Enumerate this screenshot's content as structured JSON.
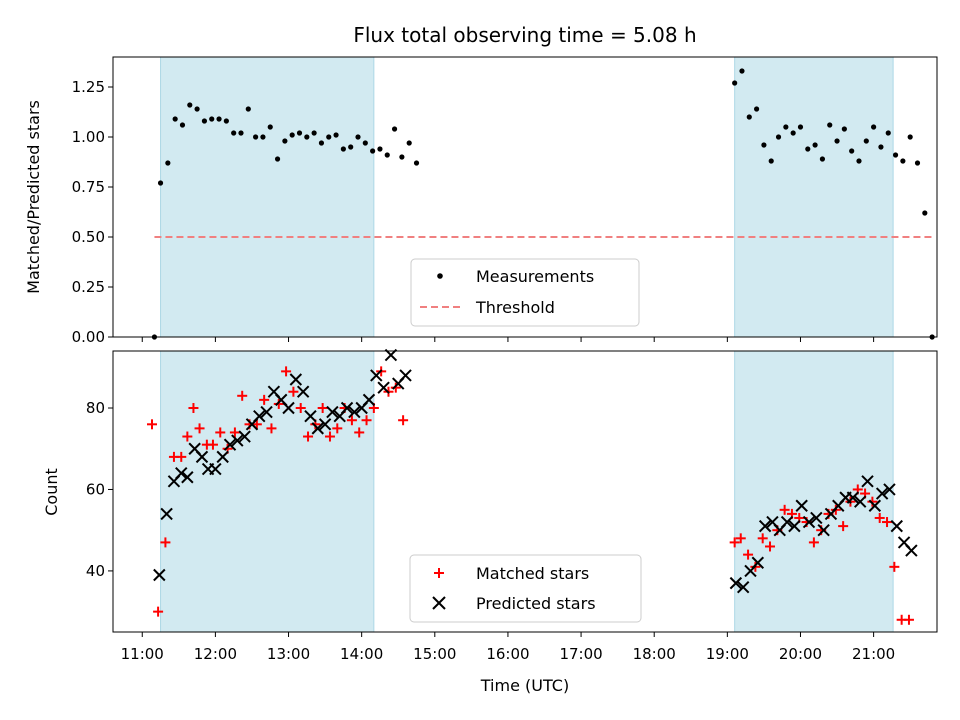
{
  "chart_data": {
    "title": "Flux total observing time = 5.08 h",
    "xlabel": "Time (UTC)",
    "x_ticks": [
      "11:00",
      "12:00",
      "13:00",
      "14:00",
      "15:00",
      "16:00",
      "17:00",
      "18:00",
      "19:00",
      "20:00",
      "21:00"
    ],
    "xlim": [
      "10:36",
      "21:52"
    ],
    "shaded_intervals": [
      {
        "start": "11:15",
        "end": "14:10"
      },
      {
        "start": "19:06",
        "end": "21:16"
      }
    ],
    "shade_color": "#add8e6",
    "panels": [
      {
        "type": "scatter",
        "ylabel": "Matched/Predicted stars",
        "ylim": [
          0,
          1.4
        ],
        "yticks": [
          "0.00",
          "0.25",
          "0.50",
          "0.75",
          "1.00",
          "1.25"
        ],
        "yticks_values": [
          0,
          0.25,
          0.5,
          0.75,
          1.0,
          1.25
        ],
        "legend_position": "lower-center",
        "series": [
          {
            "name": "Measurements",
            "marker": "dot",
            "color": "#000000",
            "points": [
              [
                "11:10",
                0.0
              ],
              [
                "11:15",
                0.77
              ],
              [
                "11:21",
                0.87
              ],
              [
                "11:27",
                1.09
              ],
              [
                "11:33",
                1.06
              ],
              [
                "11:39",
                1.16
              ],
              [
                "11:45",
                1.14
              ],
              [
                "11:51",
                1.08
              ],
              [
                "11:57",
                1.09
              ],
              [
                "12:03",
                1.09
              ],
              [
                "12:09",
                1.08
              ],
              [
                "12:15",
                1.02
              ],
              [
                "12:21",
                1.02
              ],
              [
                "12:27",
                1.14
              ],
              [
                "12:33",
                1.0
              ],
              [
                "12:39",
                1.0
              ],
              [
                "12:45",
                1.05
              ],
              [
                "12:51",
                0.89
              ],
              [
                "12:57",
                0.98
              ],
              [
                "13:03",
                1.01
              ],
              [
                "13:09",
                1.02
              ],
              [
                "13:15",
                1.0
              ],
              [
                "13:21",
                1.02
              ],
              [
                "13:27",
                0.97
              ],
              [
                "13:33",
                1.0
              ],
              [
                "13:39",
                1.01
              ],
              [
                "13:45",
                0.94
              ],
              [
                "13:51",
                0.95
              ],
              [
                "13:57",
                1.0
              ],
              [
                "14:03",
                0.97
              ],
              [
                "14:09",
                0.93
              ],
              [
                "14:15",
                0.94
              ],
              [
                "14:21",
                0.91
              ],
              [
                "14:27",
                1.04
              ],
              [
                "14:33",
                0.9
              ],
              [
                "14:39",
                0.97
              ],
              [
                "14:45",
                0.87
              ],
              [
                "19:06",
                1.27
              ],
              [
                "19:12",
                1.33
              ],
              [
                "19:18",
                1.1
              ],
              [
                "19:24",
                1.14
              ],
              [
                "19:30",
                0.96
              ],
              [
                "19:36",
                0.88
              ],
              [
                "19:42",
                1.0
              ],
              [
                "19:48",
                1.05
              ],
              [
                "19:54",
                1.02
              ],
              [
                "20:00",
                1.05
              ],
              [
                "20:06",
                0.94
              ],
              [
                "20:12",
                0.96
              ],
              [
                "20:18",
                0.89
              ],
              [
                "20:24",
                1.06
              ],
              [
                "20:30",
                0.98
              ],
              [
                "20:36",
                1.04
              ],
              [
                "20:42",
                0.93
              ],
              [
                "20:48",
                0.88
              ],
              [
                "20:54",
                0.98
              ],
              [
                "21:00",
                1.05
              ],
              [
                "21:06",
                0.95
              ],
              [
                "21:12",
                1.02
              ],
              [
                "21:18",
                0.91
              ],
              [
                "21:24",
                0.88
              ],
              [
                "21:30",
                1.0
              ],
              [
                "21:36",
                0.87
              ],
              [
                "21:42",
                0.62
              ],
              [
                "21:48",
                0.0
              ]
            ]
          },
          {
            "name": "Threshold",
            "marker": "dashed-line",
            "color": "#f08080",
            "x": [
              "11:10",
              "21:48"
            ],
            "y": [
              0.5,
              0.5
            ]
          }
        ]
      },
      {
        "type": "scatter",
        "ylabel": "Count",
        "ylim": [
          25,
          94
        ],
        "yticks": [
          "40",
          "60",
          "80"
        ],
        "yticks_values": [
          40,
          60,
          80
        ],
        "legend_position": "lower-center",
        "series": [
          {
            "name": "Matched stars",
            "marker": "plus",
            "color": "#ff0000",
            "points": [
              [
                "11:08",
                76
              ],
              [
                "11:13",
                30
              ],
              [
                "11:19",
                47
              ],
              [
                "11:26",
                68
              ],
              [
                "11:32",
                68
              ],
              [
                "11:37",
                73
              ],
              [
                "11:42",
                80
              ],
              [
                "11:47",
                75
              ],
              [
                "11:53",
                71
              ],
              [
                "11:58",
                71
              ],
              [
                "12:04",
                74
              ],
              [
                "12:10",
                70
              ],
              [
                "12:16",
                74
              ],
              [
                "12:22",
                83
              ],
              [
                "12:28",
                76
              ],
              [
                "12:34",
                76
              ],
              [
                "12:40",
                82
              ],
              [
                "12:46",
                75
              ],
              [
                "12:52",
                81
              ],
              [
                "12:58",
                89
              ],
              [
                "13:04",
                84
              ],
              [
                "13:10",
                80
              ],
              [
                "13:16",
                73
              ],
              [
                "13:22",
                76
              ],
              [
                "13:28",
                80
              ],
              [
                "13:34",
                73
              ],
              [
                "13:40",
                75
              ],
              [
                "13:46",
                80
              ],
              [
                "13:52",
                77
              ],
              [
                "13:58",
                74
              ],
              [
                "14:04",
                77
              ],
              [
                "14:10",
                80
              ],
              [
                "14:16",
                89
              ],
              [
                "14:22",
                84
              ],
              [
                "14:28",
                85
              ],
              [
                "14:34",
                77
              ],
              [
                "19:06",
                47
              ],
              [
                "19:11",
                48
              ],
              [
                "19:17",
                44
              ],
              [
                "19:23",
                41
              ],
              [
                "19:29",
                48
              ],
              [
                "19:35",
                46
              ],
              [
                "19:41",
                50
              ],
              [
                "19:47",
                55
              ],
              [
                "19:53",
                54
              ],
              [
                "19:59",
                53
              ],
              [
                "20:05",
                52
              ],
              [
                "20:11",
                47
              ],
              [
                "20:17",
                50
              ],
              [
                "20:23",
                54
              ],
              [
                "20:29",
                55
              ],
              [
                "20:35",
                51
              ],
              [
                "20:41",
                57
              ],
              [
                "20:47",
                60
              ],
              [
                "20:53",
                59
              ],
              [
                "20:59",
                57
              ],
              [
                "21:05",
                53
              ],
              [
                "21:11",
                52
              ],
              [
                "21:17",
                41
              ],
              [
                "21:23",
                28
              ],
              [
                "21:29",
                28
              ]
            ]
          },
          {
            "name": "Predicted stars",
            "marker": "x",
            "color": "#000000",
            "points": [
              [
                "11:14",
                39
              ],
              [
                "11:20",
                54
              ],
              [
                "11:26",
                62
              ],
              [
                "11:32",
                64
              ],
              [
                "11:37",
                63
              ],
              [
                "11:43",
                70
              ],
              [
                "11:49",
                68
              ],
              [
                "11:54",
                65
              ],
              [
                "12:00",
                65
              ],
              [
                "12:06",
                68
              ],
              [
                "12:12",
                71
              ],
              [
                "12:18",
                72
              ],
              [
                "12:24",
                73
              ],
              [
                "12:30",
                76
              ],
              [
                "12:36",
                78
              ],
              [
                "12:42",
                79
              ],
              [
                "12:48",
                84
              ],
              [
                "12:54",
                82
              ],
              [
                "13:00",
                80
              ],
              [
                "13:06",
                87
              ],
              [
                "13:12",
                84
              ],
              [
                "13:18",
                78
              ],
              [
                "13:24",
                75
              ],
              [
                "13:30",
                76
              ],
              [
                "13:36",
                79
              ],
              [
                "13:42",
                78
              ],
              [
                "13:48",
                80
              ],
              [
                "13:54",
                79
              ],
              [
                "14:00",
                80
              ],
              [
                "14:06",
                82
              ],
              [
                "14:12",
                88
              ],
              [
                "14:18",
                85
              ],
              [
                "14:24",
                93
              ],
              [
                "14:30",
                86
              ],
              [
                "14:36",
                88
              ],
              [
                "19:07",
                37
              ],
              [
                "19:13",
                36
              ],
              [
                "19:19",
                40
              ],
              [
                "19:25",
                42
              ],
              [
                "19:31",
                51
              ],
              [
                "19:37",
                52
              ],
              [
                "19:43",
                50
              ],
              [
                "19:49",
                52
              ],
              [
                "19:55",
                51
              ],
              [
                "20:01",
                56
              ],
              [
                "20:07",
                52
              ],
              [
                "20:13",
                53
              ],
              [
                "20:19",
                50
              ],
              [
                "20:25",
                54
              ],
              [
                "20:31",
                56
              ],
              [
                "20:37",
                58
              ],
              [
                "20:43",
                58
              ],
              [
                "20:49",
                57
              ],
              [
                "20:55",
                62
              ],
              [
                "21:01",
                56
              ],
              [
                "21:07",
                59
              ],
              [
                "21:13",
                60
              ],
              [
                "21:19",
                51
              ],
              [
                "21:25",
                47
              ],
              [
                "21:31",
                45
              ]
            ]
          }
        ]
      }
    ]
  }
}
